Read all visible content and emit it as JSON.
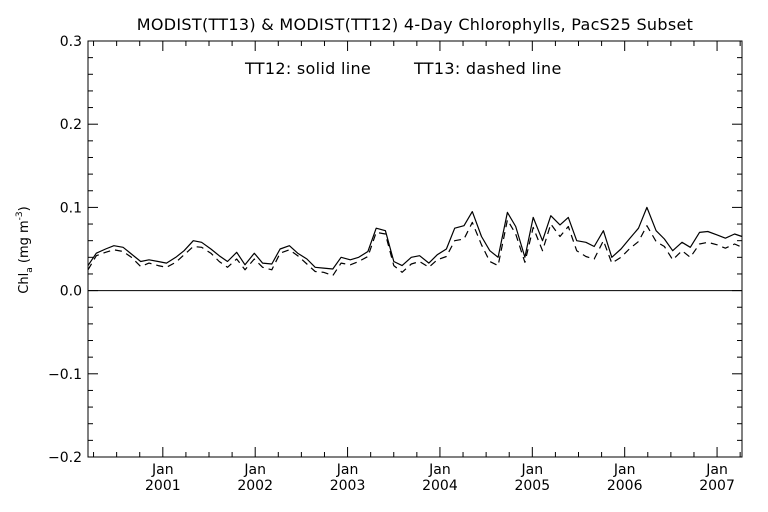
{
  "chart_data": {
    "type": "line",
    "title": "MODIST(TT13) & MODIST(TT12) 4-Day Chlorophylls, PacS25 Subset",
    "annotation_solid": "TT12: solid line",
    "annotation_dashed": "TT13: dashed line",
    "ylabel": {
      "base": "Chl",
      "sub": "a",
      "open": " (mg m",
      "sup": "-3",
      "close": ")"
    },
    "xlabel": "",
    "xlim": [
      2000.19,
      2007.27
    ],
    "ylim": [
      -0.2,
      0.3
    ],
    "yticks": [
      -0.2,
      -0.1,
      0.0,
      0.1,
      0.2,
      0.3
    ],
    "ytick_labels": [
      "−0.2",
      "−0.1",
      "0.0",
      "0.1",
      "0.2",
      "0.3"
    ],
    "xticks": [
      2001.0,
      2002.0,
      2003.0,
      2004.0,
      2005.0,
      2006.0,
      2007.0
    ],
    "xtick_month_labels": [
      "Jan",
      "Jan",
      "Jan",
      "Jan",
      "Jan",
      "Jan",
      "Jan"
    ],
    "xtick_year_labels": [
      "2001",
      "2002",
      "2003",
      "2004",
      "2005",
      "2006",
      "2007"
    ],
    "zero_line": 0.0,
    "grid": false,
    "legend": "none",
    "series": [
      {
        "name": "TT12",
        "style": "solid",
        "x": [
          2000.19,
          2000.28,
          2000.38,
          2000.47,
          2000.57,
          2000.66,
          2000.76,
          2000.85,
          2000.95,
          2001.04,
          2001.14,
          2001.23,
          2001.33,
          2001.42,
          2001.52,
          2001.61,
          2001.7,
          2001.8,
          2001.89,
          2001.99,
          2002.08,
          2002.18,
          2002.27,
          2002.37,
          2002.46,
          2002.56,
          2002.65,
          2002.74,
          2002.84,
          2002.93,
          2003.03,
          2003.12,
          2003.22,
          2003.31,
          2003.41,
          2003.5,
          2003.59,
          2003.69,
          2003.78,
          2003.88,
          2003.97,
          2004.07,
          2004.16,
          2004.26,
          2004.35,
          2004.45,
          2004.54,
          2004.63,
          2004.73,
          2004.82,
          2004.92,
          2005.01,
          2005.11,
          2005.2,
          2005.3,
          2005.39,
          2005.48,
          2005.58,
          2005.67,
          2005.77,
          2005.86,
          2005.96,
          2006.05,
          2006.15,
          2006.24,
          2006.34,
          2006.43,
          2006.52,
          2006.62,
          2006.71,
          2006.81,
          2006.9,
          2007.0,
          2007.09,
          2007.19,
          2007.27
        ],
        "y": [
          0.03,
          0.045,
          0.05,
          0.054,
          0.052,
          0.044,
          0.035,
          0.037,
          0.035,
          0.033,
          0.04,
          0.048,
          0.06,
          0.058,
          0.05,
          0.042,
          0.035,
          0.046,
          0.031,
          0.045,
          0.033,
          0.032,
          0.05,
          0.054,
          0.045,
          0.038,
          0.028,
          0.027,
          0.026,
          0.04,
          0.037,
          0.04,
          0.047,
          0.075,
          0.072,
          0.035,
          0.03,
          0.04,
          0.042,
          0.033,
          0.043,
          0.05,
          0.075,
          0.078,
          0.095,
          0.065,
          0.048,
          0.04,
          0.094,
          0.077,
          0.04,
          0.088,
          0.06,
          0.09,
          0.079,
          0.088,
          0.06,
          0.058,
          0.053,
          0.072,
          0.04,
          0.05,
          0.062,
          0.075,
          0.1,
          0.072,
          0.062,
          0.048,
          0.058,
          0.052,
          0.07,
          0.071,
          0.067,
          0.063,
          0.068,
          0.065
        ]
      },
      {
        "name": "TT13",
        "style": "dashed",
        "x": [
          2000.19,
          2000.28,
          2000.38,
          2000.47,
          2000.57,
          2000.66,
          2000.76,
          2000.85,
          2000.95,
          2001.04,
          2001.14,
          2001.23,
          2001.33,
          2001.42,
          2001.52,
          2001.61,
          2001.7,
          2001.8,
          2001.89,
          2001.99,
          2002.08,
          2002.18,
          2002.27,
          2002.37,
          2002.46,
          2002.56,
          2002.65,
          2002.74,
          2002.84,
          2002.93,
          2003.03,
          2003.12,
          2003.22,
          2003.31,
          2003.41,
          2003.5,
          2003.59,
          2003.69,
          2003.78,
          2003.88,
          2003.97,
          2004.07,
          2004.16,
          2004.26,
          2004.35,
          2004.45,
          2004.54,
          2004.63,
          2004.73,
          2004.82,
          2004.92,
          2005.01,
          2005.11,
          2005.2,
          2005.3,
          2005.39,
          2005.48,
          2005.58,
          2005.67,
          2005.77,
          2005.86,
          2005.96,
          2006.05,
          2006.15,
          2006.24,
          2006.34,
          2006.43,
          2006.52,
          2006.62,
          2006.71,
          2006.81,
          2006.9,
          2007.0,
          2007.09,
          2007.19,
          2007.27
        ],
        "y": [
          0.025,
          0.042,
          0.046,
          0.049,
          0.047,
          0.04,
          0.029,
          0.033,
          0.03,
          0.028,
          0.034,
          0.043,
          0.053,
          0.052,
          0.045,
          0.035,
          0.028,
          0.038,
          0.025,
          0.038,
          0.028,
          0.025,
          0.045,
          0.049,
          0.042,
          0.032,
          0.023,
          0.022,
          0.018,
          0.033,
          0.031,
          0.035,
          0.041,
          0.07,
          0.068,
          0.03,
          0.022,
          0.032,
          0.035,
          0.028,
          0.037,
          0.041,
          0.06,
          0.062,
          0.082,
          0.055,
          0.035,
          0.03,
          0.085,
          0.068,
          0.034,
          0.076,
          0.048,
          0.08,
          0.065,
          0.077,
          0.048,
          0.041,
          0.038,
          0.06,
          0.033,
          0.04,
          0.05,
          0.059,
          0.078,
          0.059,
          0.053,
          0.037,
          0.048,
          0.04,
          0.056,
          0.058,
          0.055,
          0.051,
          0.056,
          0.052
        ]
      }
    ]
  }
}
